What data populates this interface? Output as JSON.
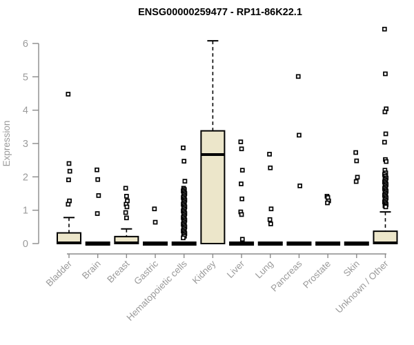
{
  "chart_data": {
    "type": "boxplot",
    "title": "ENSG00000259477 - RP11-86K22.1",
    "ylabel": "Expression",
    "xlabel": "",
    "ylim": [
      0,
      6
    ],
    "yticks": [
      0,
      1,
      2,
      3,
      4,
      5,
      6
    ],
    "grid": false,
    "legend": "none",
    "colors": {
      "box_fill": "#ece6ca",
      "box_stroke": "#000000",
      "axis": "#8a8a8a",
      "tick_text": "#9a9a9a",
      "title_text": "#000000",
      "background": "#ffffff"
    },
    "categories": [
      "Bladder",
      "Brain",
      "Breast",
      "Gastric",
      "Hematopoietic cells",
      "Kidney",
      "Liver",
      "Lung",
      "Pancreas",
      "Prostate",
      "Skin",
      "Unknown / Other"
    ],
    "boxes": [
      {
        "label": "Bladder",
        "q1": 0,
        "median": 0.02,
        "q3": 0.32,
        "whisker_low": 0,
        "whisker_high": 0.78,
        "outliers": [
          4.48,
          2.4,
          2.17,
          1.91,
          1.28,
          1.18
        ]
      },
      {
        "label": "Brain",
        "q1": 0,
        "median": 0,
        "q3": 0,
        "whisker_low": 0,
        "whisker_high": 0,
        "outliers": [
          2.21,
          1.92,
          1.44,
          0.9
        ]
      },
      {
        "label": "Breast",
        "q1": 0,
        "median": 0.02,
        "q3": 0.21,
        "whisker_low": 0,
        "whisker_high": 0.44,
        "outliers": [
          1.66,
          1.42,
          1.28,
          1.18,
          1.1,
          0.93,
          0.77
        ]
      },
      {
        "label": "Gastric",
        "q1": 0,
        "median": 0,
        "q3": 0,
        "whisker_low": 0,
        "whisker_high": 0,
        "outliers": [
          1.04,
          0.64
        ]
      },
      {
        "label": "Hematopoietic cells",
        "q1": 0,
        "median": 0,
        "q3": 0,
        "whisker_low": 0,
        "whisker_high": 0,
        "outliers": [
          2.87,
          2.47,
          1.87,
          1.66,
          1.62,
          1.58,
          1.54,
          1.5,
          1.46,
          1.42,
          1.38,
          1.34,
          1.3,
          1.26,
          1.22,
          1.18,
          1.14,
          1.1,
          1.06,
          1.02,
          0.98,
          0.94,
          0.9,
          0.86,
          0.82,
          0.78,
          0.74,
          0.7,
          0.66,
          0.62,
          0.58,
          0.54,
          0.5,
          0.46,
          0.42,
          0.38,
          0.34,
          0.3,
          0.26,
          0.22,
          0.17
        ]
      },
      {
        "label": "Kidney",
        "q1": 0,
        "median": 2.67,
        "q3": 3.38,
        "whisker_low": 0,
        "whisker_high": 6.08,
        "outliers": []
      },
      {
        "label": "Liver",
        "q1": 0,
        "median": 0,
        "q3": 0,
        "whisker_low": 0,
        "whisker_high": 0,
        "outliers": [
          3.05,
          2.84,
          2.2,
          1.79,
          1.34,
          0.95,
          0.87,
          0.13
        ]
      },
      {
        "label": "Lung",
        "q1": 0,
        "median": 0,
        "q3": 0,
        "whisker_low": 0,
        "whisker_high": 0,
        "outliers": [
          2.68,
          2.27,
          1.04,
          0.72,
          0.59
        ]
      },
      {
        "label": "Pancreas",
        "q1": 0,
        "median": 0,
        "q3": 0,
        "whisker_low": 0,
        "whisker_high": 0,
        "outliers": [
          5.01,
          3.25,
          1.73
        ]
      },
      {
        "label": "Prostate",
        "q1": 0,
        "median": 0,
        "q3": 0,
        "whisker_low": 0,
        "whisker_high": 0,
        "outliers": [
          1.42,
          1.38,
          1.28,
          1.22
        ]
      },
      {
        "label": "Skin",
        "q1": 0,
        "median": 0,
        "q3": 0,
        "whisker_low": 0,
        "whisker_high": 0,
        "outliers": [
          2.73,
          2.48,
          1.99,
          1.86
        ]
      },
      {
        "label": "Unknown / Other",
        "q1": 0,
        "median": 0.02,
        "q3": 0.37,
        "whisker_low": 0,
        "whisker_high": 0.95,
        "outliers": [
          6.43,
          5.09,
          4.04,
          3.95,
          3.29,
          3.04,
          2.52,
          2.46,
          2.2,
          2.12,
          2.07,
          2.02,
          1.97,
          1.93,
          1.89,
          1.85,
          1.81,
          1.77,
          1.73,
          1.69,
          1.65,
          1.61,
          1.57,
          1.53,
          1.49,
          1.45,
          1.41,
          1.37,
          1.33,
          1.29,
          1.25,
          1.21,
          1.17,
          1.13,
          1.1
        ]
      }
    ]
  }
}
